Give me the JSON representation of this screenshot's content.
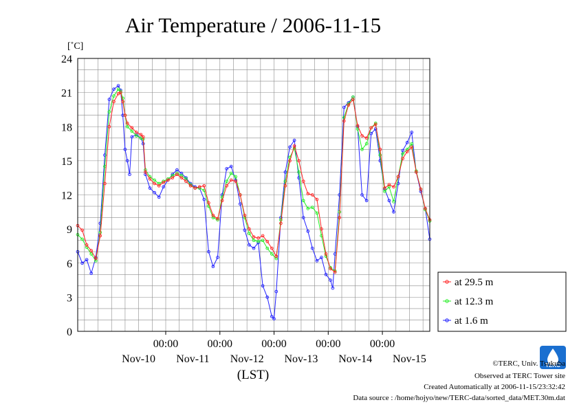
{
  "header": {
    "title": "Air Temperature / 2006-11-15",
    "unit": "[˚C]"
  },
  "footer": {
    "copyright": "©TERC, Univ. Tsukuba",
    "observed": "Observed at TERC Tower site",
    "created": "Created Automatically at 2006-11-15/23:32:42",
    "source": "Data source : /home/hojyo/new/TERC-data/sorted_data/MET.30m.dat",
    "logo_text": "TERC"
  },
  "colors": {
    "series_29_5": "#ff2020",
    "series_12_3": "#22ee22",
    "series_1_6": "#2020ff",
    "logo": "#1a6fd0"
  },
  "chart_data": {
    "type": "line",
    "title": "Air Temperature / 2006-11-15",
    "ylabel": "[˚C]",
    "xlabel": "(LST)",
    "ylim": [
      0,
      24
    ],
    "yticks": [
      0,
      3,
      6,
      9,
      12,
      15,
      18,
      21,
      24
    ],
    "xlim_hours": [
      -15,
      141
    ],
    "xtick_top_labels": [
      "00:00",
      "00:00",
      "00:00",
      "00:00",
      "00:00"
    ],
    "xtick_bottom_labels": [
      "Nov-10",
      "Nov-11",
      "Nov-12",
      "Nov-13",
      "Nov-14",
      "Nov-15"
    ],
    "grid": true,
    "legend": "right, below plot",
    "series": [
      {
        "name": "at 29.5 m",
        "points": [
          [
            -15,
            9.3
          ],
          [
            -13,
            8.9
          ],
          [
            -11,
            7.6
          ],
          [
            -9,
            7.1
          ],
          [
            -7,
            6.4
          ],
          [
            -5,
            8.4
          ],
          [
            -3,
            13.0
          ],
          [
            -1,
            18.0
          ],
          [
            1,
            20.2
          ],
          [
            3,
            20.9
          ],
          [
            4,
            21.0
          ],
          [
            5,
            20.2
          ],
          [
            6,
            19.0
          ],
          [
            7,
            18.3
          ],
          [
            9,
            17.9
          ],
          [
            11,
            17.5
          ],
          [
            13,
            17.3
          ],
          [
            14,
            17.1
          ],
          [
            15,
            14.0
          ],
          [
            17,
            13.4
          ],
          [
            19,
            13.0
          ],
          [
            21,
            12.8
          ],
          [
            23,
            13.1
          ],
          [
            25,
            13.3
          ],
          [
            27,
            13.5
          ],
          [
            29,
            13.8
          ],
          [
            31,
            13.5
          ],
          [
            33,
            13.2
          ],
          [
            35,
            12.8
          ],
          [
            37,
            12.6
          ],
          [
            39,
            12.7
          ],
          [
            41,
            12.8
          ],
          [
            43,
            11.3
          ],
          [
            45,
            10.2
          ],
          [
            47,
            9.9
          ],
          [
            49,
            11.5
          ],
          [
            51,
            12.8
          ],
          [
            53,
            13.3
          ],
          [
            55,
            13.2
          ],
          [
            57,
            12.0
          ],
          [
            59,
            10.2
          ],
          [
            61,
            9.0
          ],
          [
            63,
            8.3
          ],
          [
            65,
            8.2
          ],
          [
            67,
            8.4
          ],
          [
            69,
            7.9
          ],
          [
            71,
            7.3
          ],
          [
            73,
            6.6
          ],
          [
            75,
            9.5
          ],
          [
            77,
            12.8
          ],
          [
            79,
            15.0
          ],
          [
            81,
            16.3
          ],
          [
            83,
            15.0
          ],
          [
            85,
            13.2
          ],
          [
            87,
            12.1
          ],
          [
            89,
            12.0
          ],
          [
            91,
            11.6
          ],
          [
            93,
            9.0
          ],
          [
            95,
            6.8
          ],
          [
            97,
            5.5
          ],
          [
            99,
            5.2
          ],
          [
            101,
            10.0
          ],
          [
            103,
            18.5
          ],
          [
            105,
            19.9
          ],
          [
            107,
            20.4
          ],
          [
            109,
            18.1
          ],
          [
            111,
            17.2
          ],
          [
            113,
            17.0
          ],
          [
            115,
            17.9
          ],
          [
            117,
            18.2
          ],
          [
            119,
            16.0
          ],
          [
            121,
            12.6
          ],
          [
            123,
            12.9
          ],
          [
            125,
            12.7
          ],
          [
            127,
            13.6
          ],
          [
            129,
            15.2
          ],
          [
            131,
            15.8
          ],
          [
            133,
            16.2
          ],
          [
            135,
            14.0
          ],
          [
            137,
            12.5
          ],
          [
            139,
            10.8
          ],
          [
            141,
            9.8
          ]
        ]
      },
      {
        "name": "at 12.3 m",
        "points": [
          [
            -15,
            8.5
          ],
          [
            -13,
            8.1
          ],
          [
            -11,
            7.4
          ],
          [
            -9,
            6.8
          ],
          [
            -7,
            6.2
          ],
          [
            -5,
            8.7
          ],
          [
            -3,
            14.5
          ],
          [
            -1,
            19.3
          ],
          [
            1,
            20.7
          ],
          [
            3,
            21.3
          ],
          [
            4,
            21.1
          ],
          [
            5,
            20.5
          ],
          [
            6,
            19.0
          ],
          [
            7,
            18.0
          ],
          [
            9,
            17.6
          ],
          [
            11,
            17.2
          ],
          [
            13,
            17.0
          ],
          [
            14,
            16.9
          ],
          [
            15,
            14.2
          ],
          [
            17,
            13.6
          ],
          [
            19,
            13.3
          ],
          [
            21,
            13.0
          ],
          [
            23,
            13.2
          ],
          [
            25,
            13.4
          ],
          [
            27,
            13.7
          ],
          [
            29,
            13.9
          ],
          [
            31,
            13.7
          ],
          [
            33,
            13.4
          ],
          [
            35,
            12.9
          ],
          [
            37,
            12.6
          ],
          [
            39,
            12.6
          ],
          [
            41,
            12.4
          ],
          [
            43,
            11.0
          ],
          [
            45,
            10.0
          ],
          [
            47,
            9.8
          ],
          [
            49,
            11.8
          ],
          [
            51,
            13.2
          ],
          [
            53,
            13.9
          ],
          [
            55,
            13.6
          ],
          [
            57,
            12.0
          ],
          [
            59,
            10.0
          ],
          [
            61,
            8.6
          ],
          [
            63,
            8.0
          ],
          [
            65,
            7.9
          ],
          [
            67,
            8.0
          ],
          [
            69,
            7.3
          ],
          [
            71,
            6.8
          ],
          [
            73,
            6.4
          ],
          [
            75,
            9.8
          ],
          [
            77,
            13.2
          ],
          [
            79,
            15.3
          ],
          [
            81,
            16.1
          ],
          [
            83,
            14.0
          ],
          [
            85,
            11.5
          ],
          [
            87,
            10.8
          ],
          [
            89,
            10.9
          ],
          [
            91,
            10.4
          ],
          [
            93,
            8.4
          ],
          [
            95,
            6.6
          ],
          [
            97,
            5.6
          ],
          [
            99,
            5.3
          ],
          [
            101,
            10.5
          ],
          [
            103,
            18.8
          ],
          [
            105,
            20.0
          ],
          [
            107,
            20.6
          ],
          [
            109,
            17.8
          ],
          [
            111,
            16.0
          ],
          [
            113,
            16.5
          ],
          [
            115,
            17.9
          ],
          [
            117,
            18.3
          ],
          [
            119,
            15.5
          ],
          [
            121,
            12.3
          ],
          [
            123,
            12.7
          ],
          [
            125,
            11.4
          ],
          [
            127,
            13.6
          ],
          [
            129,
            15.6
          ],
          [
            131,
            16.0
          ],
          [
            133,
            16.5
          ],
          [
            135,
            14.1
          ],
          [
            137,
            12.5
          ],
          [
            139,
            10.7
          ],
          [
            141,
            9.7
          ]
        ]
      },
      {
        "name": "at 1.6 m",
        "points": [
          [
            -15,
            7.0
          ],
          [
            -13,
            6.0
          ],
          [
            -11,
            6.3
          ],
          [
            -9,
            5.1
          ],
          [
            -7,
            6.5
          ],
          [
            -5,
            9.5
          ],
          [
            -3,
            15.5
          ],
          [
            -1,
            20.4
          ],
          [
            1,
            21.3
          ],
          [
            3,
            21.6
          ],
          [
            4,
            21.2
          ],
          [
            5,
            19.0
          ],
          [
            6,
            16.0
          ],
          [
            7,
            15.0
          ],
          [
            8,
            13.8
          ],
          [
            9,
            17.1
          ],
          [
            11,
            17.3
          ],
          [
            13,
            17.0
          ],
          [
            14,
            16.5
          ],
          [
            15,
            13.8
          ],
          [
            17,
            12.6
          ],
          [
            19,
            12.2
          ],
          [
            21,
            11.8
          ],
          [
            23,
            12.7
          ],
          [
            25,
            13.3
          ],
          [
            27,
            13.8
          ],
          [
            29,
            14.2
          ],
          [
            31,
            13.9
          ],
          [
            33,
            13.5
          ],
          [
            35,
            13.0
          ],
          [
            37,
            12.7
          ],
          [
            39,
            12.6
          ],
          [
            41,
            11.6
          ],
          [
            43,
            7.0
          ],
          [
            45,
            5.7
          ],
          [
            47,
            6.5
          ],
          [
            49,
            12.0
          ],
          [
            51,
            14.3
          ],
          [
            53,
            14.5
          ],
          [
            55,
            13.3
          ],
          [
            57,
            11.2
          ],
          [
            59,
            8.9
          ],
          [
            61,
            7.6
          ],
          [
            63,
            7.3
          ],
          [
            65,
            7.8
          ],
          [
            67,
            4.0
          ],
          [
            69,
            3.0
          ],
          [
            71,
            1.3
          ],
          [
            72,
            1.1
          ],
          [
            73,
            3.5
          ],
          [
            75,
            10.0
          ],
          [
            77,
            14.0
          ],
          [
            79,
            16.2
          ],
          [
            81,
            16.8
          ],
          [
            83,
            13.5
          ],
          [
            85,
            10.0
          ],
          [
            87,
            8.8
          ],
          [
            89,
            7.3
          ],
          [
            91,
            6.2
          ],
          [
            93,
            6.5
          ],
          [
            95,
            5.0
          ],
          [
            97,
            4.5
          ],
          [
            98,
            3.8
          ],
          [
            99,
            6.8
          ],
          [
            101,
            12.0
          ],
          [
            103,
            19.7
          ],
          [
            105,
            20.1
          ],
          [
            107,
            20.6
          ],
          [
            109,
            18.0
          ],
          [
            111,
            12.0
          ],
          [
            113,
            11.5
          ],
          [
            115,
            17.4
          ],
          [
            117,
            17.8
          ],
          [
            119,
            15.0
          ],
          [
            121,
            12.5
          ],
          [
            123,
            11.5
          ],
          [
            125,
            10.5
          ],
          [
            127,
            13.0
          ],
          [
            129,
            15.9
          ],
          [
            131,
            16.6
          ],
          [
            133,
            17.5
          ],
          [
            135,
            14.0
          ],
          [
            137,
            12.3
          ],
          [
            139,
            10.8
          ],
          [
            141,
            8.1
          ]
        ]
      }
    ]
  }
}
